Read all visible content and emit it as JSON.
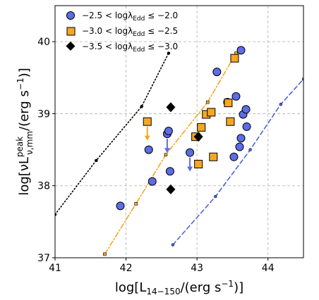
{
  "chart_data": {
    "type": "scatter",
    "title": "",
    "xlabel": "log[L",
    "xlabel_sub": "14−150",
    "xlabel_tail": "/(erg s",
    "xlabel_sup": "−1",
    "xlabel_end": ")]",
    "ylabel": "log[νL",
    "ylabel_sup": "peak",
    "ylabel_sub": "ν,mm",
    "ylabel_tail": "/(erg s",
    "ylabel_sup2": "−1",
    "ylabel_end": ")]",
    "xlim": [
      41.0,
      44.5
    ],
    "ylim": [
      37.0,
      40.5
    ],
    "xticks": [
      41,
      42,
      43,
      44
    ],
    "yticks": [
      37,
      38,
      39,
      40
    ],
    "grid": true,
    "legend_position": "top-left",
    "series": [
      {
        "label_main": "−2.5 < logλ",
        "label_sub": "Edd",
        "label_tail": " ≤ −2.0",
        "marker": "circle",
        "color": "#5c6de6",
        "points": [
          [
            41.92,
            37.72
          ],
          [
            42.32,
            38.5
          ],
          [
            42.37,
            38.06
          ],
          [
            42.58,
            38.72
          ],
          [
            42.6,
            38.76
          ],
          [
            42.62,
            38.2
          ],
          [
            42.9,
            38.46
          ],
          [
            43.28,
            39.58
          ],
          [
            43.43,
            39.16
          ],
          [
            43.52,
            38.4
          ],
          [
            43.55,
            39.24
          ],
          [
            43.6,
            38.54
          ],
          [
            43.62,
            38.66
          ],
          [
            43.62,
            39.88
          ],
          [
            43.65,
            38.99
          ],
          [
            43.69,
            39.06
          ],
          [
            43.7,
            38.82
          ]
        ],
        "upper_limits": [
          [
            42.58,
            38.72
          ],
          [
            42.9,
            38.46
          ]
        ]
      },
      {
        "label_main": "−3.0 < logλ",
        "label_sub": "Edd",
        "label_tail": " ≤ −2.5",
        "marker": "square",
        "color": "#f5a623",
        "points": [
          [
            42.3,
            38.89
          ],
          [
            42.98,
            38.68
          ],
          [
            43.02,
            38.3
          ],
          [
            43.06,
            38.81
          ],
          [
            43.13,
            38.99
          ],
          [
            43.2,
            39.02
          ],
          [
            43.23,
            38.4
          ],
          [
            43.44,
            39.15
          ],
          [
            43.47,
            38.89
          ],
          [
            43.53,
            39.77
          ]
        ],
        "upper_limits": [
          [
            42.3,
            38.89
          ]
        ]
      },
      {
        "label_main": "−3.5 < logλ",
        "label_sub": "Edd",
        "label_tail": " ≤ −3.0",
        "marker": "diamond",
        "color": "#000000",
        "points": [
          [
            42.63,
            39.09
          ],
          [
            42.63,
            37.95
          ],
          [
            43.02,
            38.68
          ]
        ]
      }
    ],
    "fit_lines": [
      {
        "style": "dotted",
        "color": "#000000",
        "points": [
          [
            41.0,
            37.6
          ],
          [
            41.58,
            38.35
          ],
          [
            42.22,
            39.1
          ],
          [
            42.6,
            39.84
          ]
        ]
      },
      {
        "style": "dash-dot",
        "color": "#f5a623",
        "points": [
          [
            41.7,
            37.05
          ],
          [
            42.14,
            37.75
          ],
          [
            42.56,
            38.43
          ],
          [
            43.15,
            39.16
          ],
          [
            43.55,
            39.84
          ]
        ]
      },
      {
        "style": "dashed",
        "color": "#4a64d8",
        "points": [
          [
            42.66,
            37.18
          ],
          [
            43.26,
            37.85
          ],
          [
            43.75,
            38.5
          ],
          [
            44.18,
            39.13
          ],
          [
            44.5,
            39.48
          ]
        ]
      }
    ]
  }
}
